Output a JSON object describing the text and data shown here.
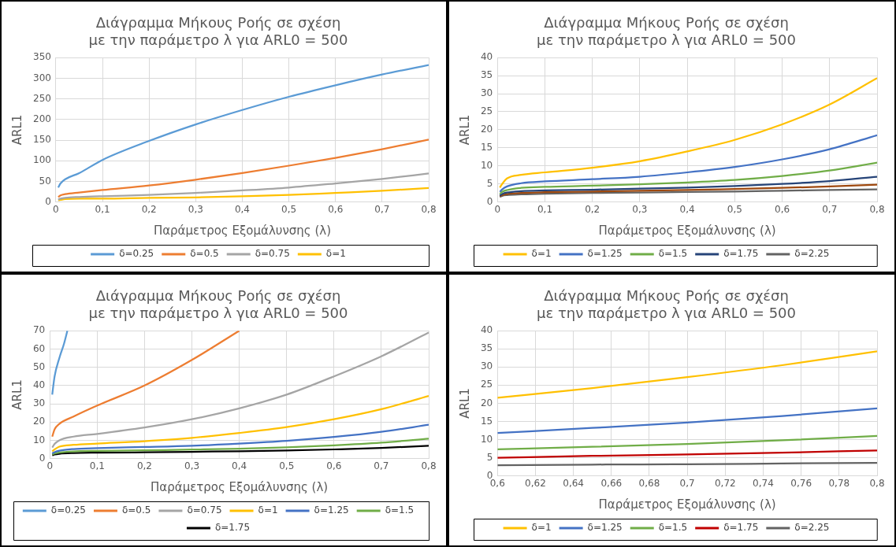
{
  "chart_data": [
    {
      "type": "line",
      "title": "Διάγραμμα Μήκους Ροής σε σχέση με την παράμετρο λ για ARL0 = 500",
      "xlabel": "Παράμετρος Εξομάλυνσης (λ)",
      "ylabel": "ARL1",
      "x": [
        0.005,
        0.01,
        0.02,
        0.05,
        0.1,
        0.2,
        0.3,
        0.4,
        0.5,
        0.6,
        0.7,
        0.8
      ],
      "series": [
        {
          "name": "δ=0.25",
          "color": "#5b9bd5",
          "values": [
            35,
            45,
            55,
            70,
            102,
            148,
            188,
            223,
            255,
            283,
            309,
            332
          ]
        },
        {
          "name": "δ=0.5",
          "color": "#ed7d31",
          "values": [
            12,
            16,
            19,
            23,
            29,
            40,
            54,
            70,
            88,
            107,
            128,
            151
          ]
        },
        {
          "name": "δ=0.75",
          "color": "#a5a5a5",
          "values": [
            6,
            8,
            10,
            12,
            14,
            17,
            22,
            28,
            35,
            45,
            56,
            69
          ]
        },
        {
          "name": "δ=1",
          "color": "#ffc000",
          "values": [
            4,
            5,
            7,
            8,
            8,
            10,
            11,
            14,
            17,
            22,
            27,
            34
          ]
        }
      ],
      "xlim": [
        0,
        0.8
      ],
      "xticks": [
        {
          "value": 0,
          "label": "0"
        },
        {
          "value": 0.1,
          "label": "0,1"
        },
        {
          "value": 0.2,
          "label": "0,2"
        },
        {
          "value": 0.3,
          "label": "0,3"
        },
        {
          "value": 0.4,
          "label": "0,4"
        },
        {
          "value": 0.5,
          "label": "0,5"
        },
        {
          "value": 0.6,
          "label": "0,6"
        },
        {
          "value": 0.7,
          "label": "0,7"
        },
        {
          "value": 0.8,
          "label": "0,8"
        }
      ],
      "ylim": [
        0,
        350
      ],
      "yticks": [
        0,
        50,
        100,
        150,
        200,
        250,
        300,
        350
      ],
      "grid": true,
      "legend": "bottom"
    },
    {
      "type": "line",
      "title": "Διάγραμμα Μήκους Ροής σε σχέση με την παράμετρο λ για ARL0 = 500",
      "xlabel": "Παράμετρος Εξομάλυνσης (λ)",
      "ylabel": "ARL1",
      "x": [
        0.005,
        0.01,
        0.02,
        0.05,
        0.1,
        0.2,
        0.3,
        0.4,
        0.5,
        0.6,
        0.7,
        0.8
      ],
      "series": [
        {
          "name": "δ=1",
          "color": "#ffc000",
          "values": [
            4,
            5,
            6.5,
            7.5,
            8.2,
            9.5,
            11.3,
            14,
            17.2,
            21.5,
            27,
            34.3
          ]
        },
        {
          "name": "δ=1.25",
          "color": "#4472c4",
          "values": [
            2.8,
            3.5,
            4.3,
            5.2,
            5.7,
            6.3,
            7,
            8.2,
            9.7,
            11.8,
            14.6,
            18.5
          ]
        },
        {
          "name": "δ=1.5",
          "color": "#70ad47",
          "values": [
            2.2,
            2.8,
            3.3,
            3.9,
            4.2,
            4.5,
            4.9,
            5.4,
            6.1,
            7.2,
            8.7,
            10.9
          ]
        },
        {
          "name": "δ=1.75",
          "color": "#264478",
          "values": [
            1.8,
            2.2,
            2.6,
            3,
            3.2,
            3.4,
            3.7,
            4,
            4.4,
            5,
            5.8,
            7
          ]
        },
        {
          "color": "#9e480e",
          "values": [
            1.6,
            1.9,
            2.2,
            2.5,
            2.7,
            2.9,
            3.1,
            3.3,
            3.6,
            3.9,
            4.3,
            4.8
          ]
        },
        {
          "name": "δ=2.25",
          "color": "#636363",
          "values": [
            1.4,
            1.7,
            1.9,
            2.1,
            2.3,
            2.5,
            2.6,
            2.8,
            2.9,
            3.1,
            3.3,
            3.5
          ]
        }
      ],
      "xlim": [
        0,
        0.8
      ],
      "xticks": [
        0,
        {
          "value": 0.1,
          "label": "0,1"
        },
        {
          "value": 0.2,
          "label": "0,2"
        },
        {
          "value": 0.3,
          "label": "0,3"
        },
        {
          "value": 0.4,
          "label": "0,4"
        },
        {
          "value": 0.5,
          "label": "0,5"
        },
        {
          "value": 0.6,
          "label": "0,6"
        },
        {
          "value": 0.7,
          "label": "0,7"
        },
        {
          "value": 0.8,
          "label": "0,8"
        }
      ],
      "ylim": [
        0,
        40
      ],
      "yticks": [
        0,
        5,
        10,
        15,
        20,
        25,
        30,
        35,
        40
      ],
      "grid": true,
      "legend": "bottom"
    },
    {
      "type": "line",
      "title": "Διάγραμμα Μήκους Ροής σε σχέση με την παράμετρο λ για ARL0 = 500",
      "xlabel": "Παράμετρος Εξομάλυνσης (λ)",
      "ylabel": "ARL1",
      "x": [
        0.005,
        0.01,
        0.02,
        0.05,
        0.1,
        0.2,
        0.3,
        0.4,
        0.5,
        0.6,
        0.7,
        0.8
      ],
      "series": [
        {
          "name": "δ=0.25",
          "color": "#5b9bd5",
          "x": [
            0.005,
            0.01,
            0.02,
            0.03,
            0.037
          ],
          "values": [
            35,
            45,
            55,
            63,
            70
          ]
        },
        {
          "name": "δ=0.5",
          "color": "#ed7d31",
          "x": [
            0.005,
            0.01,
            0.02,
            0.05,
            0.1,
            0.2,
            0.3,
            0.4
          ],
          "values": [
            12,
            16,
            19,
            23,
            29,
            40,
            54,
            70
          ]
        },
        {
          "name": "δ=0.75",
          "color": "#a5a5a5",
          "values": [
            6,
            8,
            10,
            12,
            13.5,
            17,
            21.5,
            27.5,
            35,
            45,
            56,
            69
          ]
        },
        {
          "name": "δ=1",
          "color": "#ffc000",
          "values": [
            4,
            5,
            6.5,
            7.5,
            8.2,
            9.5,
            11.3,
            14,
            17.2,
            21.5,
            27,
            34.3
          ]
        },
        {
          "name": "δ=1.25",
          "color": "#4472c4",
          "values": [
            2.8,
            3.5,
            4.3,
            5.2,
            5.7,
            6.3,
            7,
            8.2,
            9.7,
            11.8,
            14.6,
            18.5
          ]
        },
        {
          "name": "δ=1.5",
          "color": "#70ad47",
          "values": [
            2.2,
            2.8,
            3.3,
            3.9,
            4.2,
            4.5,
            4.9,
            5.4,
            6.1,
            7.2,
            8.7,
            10.9
          ]
        },
        {
          "name": "δ=1.75",
          "color": "#000000",
          "values": [
            1.8,
            2.2,
            2.6,
            3,
            3.2,
            3.4,
            3.7,
            4,
            4.4,
            5,
            5.8,
            7
          ]
        }
      ],
      "xlim": [
        0,
        0.8
      ],
      "xticks": [
        0,
        {
          "value": 0.1,
          "label": "0,1"
        },
        {
          "value": 0.2,
          "label": "0,2"
        },
        {
          "value": 0.3,
          "label": "0,3"
        },
        {
          "value": 0.4,
          "label": "0,4"
        },
        {
          "value": 0.5,
          "label": "0,5"
        },
        {
          "value": 0.6,
          "label": "0,6"
        },
        {
          "value": 0.7,
          "label": "0,7"
        },
        {
          "value": 0.8,
          "label": "0,8"
        }
      ],
      "ylim": [
        0,
        70
      ],
      "yticks": [
        0,
        10,
        20,
        30,
        40,
        50,
        60,
        70
      ],
      "grid": true,
      "legend": "bottom"
    },
    {
      "type": "line",
      "title": "Διάγραμμα Μήκους Ροής σε σχέση με την παράμετρο λ για ARL0 = 500",
      "xlabel": "Παράμετρος Εξομάλυνσης (λ)",
      "ylabel": "ARL1",
      "x": [
        0.6,
        0.65,
        0.7,
        0.75,
        0.8
      ],
      "series": [
        {
          "name": "δ=1",
          "color": "#ffc000",
          "values": [
            21.5,
            24.2,
            27.2,
            30.5,
            34.3
          ]
        },
        {
          "name": "δ=1.25",
          "color": "#4472c4",
          "values": [
            11.8,
            13.2,
            14.7,
            16.5,
            18.6
          ]
        },
        {
          "name": "δ=1.5",
          "color": "#70ad47",
          "values": [
            7.3,
            8,
            8.8,
            9.8,
            11
          ]
        },
        {
          "name": "δ=1.75",
          "color": "#c00000",
          "values": [
            5,
            5.5,
            5.9,
            6.4,
            7
          ]
        },
        {
          "name": "δ=2.25",
          "color": "#636363",
          "values": [
            2.9,
            3.1,
            3.2,
            3.4,
            3.6
          ]
        }
      ],
      "xlim": [
        0.6,
        0.8
      ],
      "xticks": [
        {
          "value": 0.6,
          "label": "0,6"
        },
        {
          "value": 0.62,
          "label": "0,62"
        },
        {
          "value": 0.64,
          "label": "0,64"
        },
        {
          "value": 0.66,
          "label": "0,66"
        },
        {
          "value": 0.68,
          "label": "0,68"
        },
        {
          "value": 0.7,
          "label": "0,7"
        },
        {
          "value": 0.72,
          "label": "0,72"
        },
        {
          "value": 0.74,
          "label": "0,74"
        },
        {
          "value": 0.76,
          "label": "0,76"
        },
        {
          "value": 0.78,
          "label": "0,78"
        },
        {
          "value": 0.8,
          "label": "0,8"
        }
      ],
      "ylim": [
        0,
        40
      ],
      "yticks": [
        0,
        5,
        10,
        15,
        20,
        25,
        30,
        35,
        40
      ],
      "grid": true,
      "legend": "bottom"
    }
  ]
}
